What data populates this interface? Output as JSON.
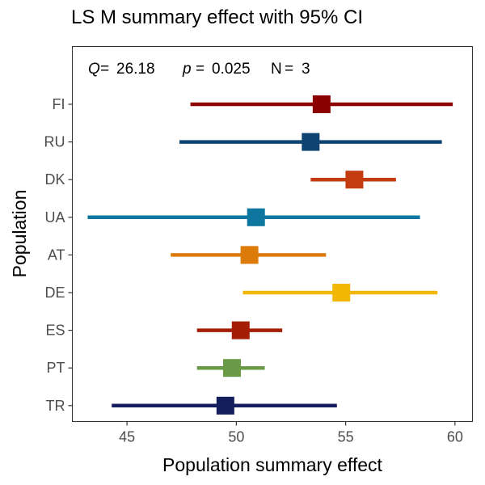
{
  "chart_data": {
    "type": "forest",
    "title": "LS M summary effect with 95% CI",
    "xlabel": "Population summary effect",
    "ylabel": "Population",
    "xlim": [
      42.5,
      60.8
    ],
    "xticks": [
      45,
      50,
      55,
      60
    ],
    "grid": false,
    "annotation": {
      "q_label": "Q",
      "q_value": "26.18",
      "p_label": "p",
      "p_value": "0.025",
      "n_label": "N",
      "n_value": "3"
    },
    "series": [
      {
        "category": "FI",
        "estimate": 53.9,
        "lower": 47.9,
        "upper": 59.9,
        "color": "#8B0000"
      },
      {
        "category": "RU",
        "estimate": 53.4,
        "lower": 47.4,
        "upper": 59.4,
        "color": "#0E4372"
      },
      {
        "category": "DK",
        "estimate": 55.4,
        "lower": 53.4,
        "upper": 57.3,
        "color": "#C33B0F"
      },
      {
        "category": "UA",
        "estimate": 50.9,
        "lower": 43.2,
        "upper": 58.4,
        "color": "#0F76A0"
      },
      {
        "category": "AT",
        "estimate": 50.6,
        "lower": 47.0,
        "upper": 54.1,
        "color": "#DC7A0A"
      },
      {
        "category": "DE",
        "estimate": 54.8,
        "lower": 50.3,
        "upper": 59.2,
        "color": "#F2B705"
      },
      {
        "category": "ES",
        "estimate": 50.2,
        "lower": 48.2,
        "upper": 52.1,
        "color": "#A51D04"
      },
      {
        "category": "PT",
        "estimate": 49.8,
        "lower": 48.2,
        "upper": 51.3,
        "color": "#6A9A45"
      },
      {
        "category": "TR",
        "estimate": 49.5,
        "lower": 44.3,
        "upper": 54.6,
        "color": "#151E5C"
      }
    ]
  }
}
